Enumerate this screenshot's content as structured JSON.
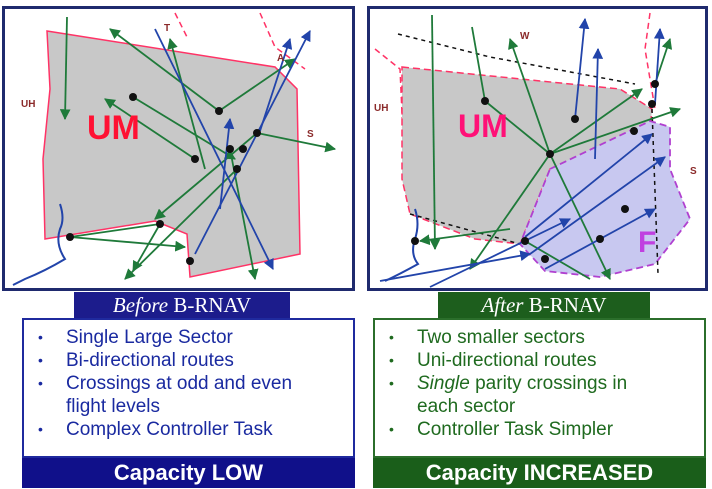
{
  "before": {
    "map": {
      "sector_label": "UM",
      "neighbor_labels": [
        "UH",
        "T",
        "A",
        "S"
      ]
    },
    "caption_italic": "Before",
    "caption_rest": " B-RNAV",
    "bullets": [
      "Single Large Sector",
      "Bi-directional routes",
      "Crossings at odd and even",
      "flight levels",
      "Complex Controller Task"
    ],
    "banner": "Capacity LOW"
  },
  "after": {
    "map": {
      "sector_label": "UM",
      "new_sector_label": "F",
      "neighbor_labels": [
        "UH",
        "W",
        "S"
      ]
    },
    "caption_italic": "After",
    "caption_rest": " B-RNAV",
    "bullets": [
      "Two smaller sectors",
      "Uni-directional routes",
      "parity crossings in",
      "each sector",
      "Controller Task Simpler"
    ],
    "single_word": "Single",
    "banner": "Capacity INCREASED"
  },
  "colors": {
    "sector_fill": "#c8c8c8",
    "sector_border": "#ff3366",
    "new_sector_fill": "#c8c8f0",
    "new_sector_border": "#b040d0",
    "route_green": "#1f7a3a",
    "route_blue": "#2244aa"
  }
}
